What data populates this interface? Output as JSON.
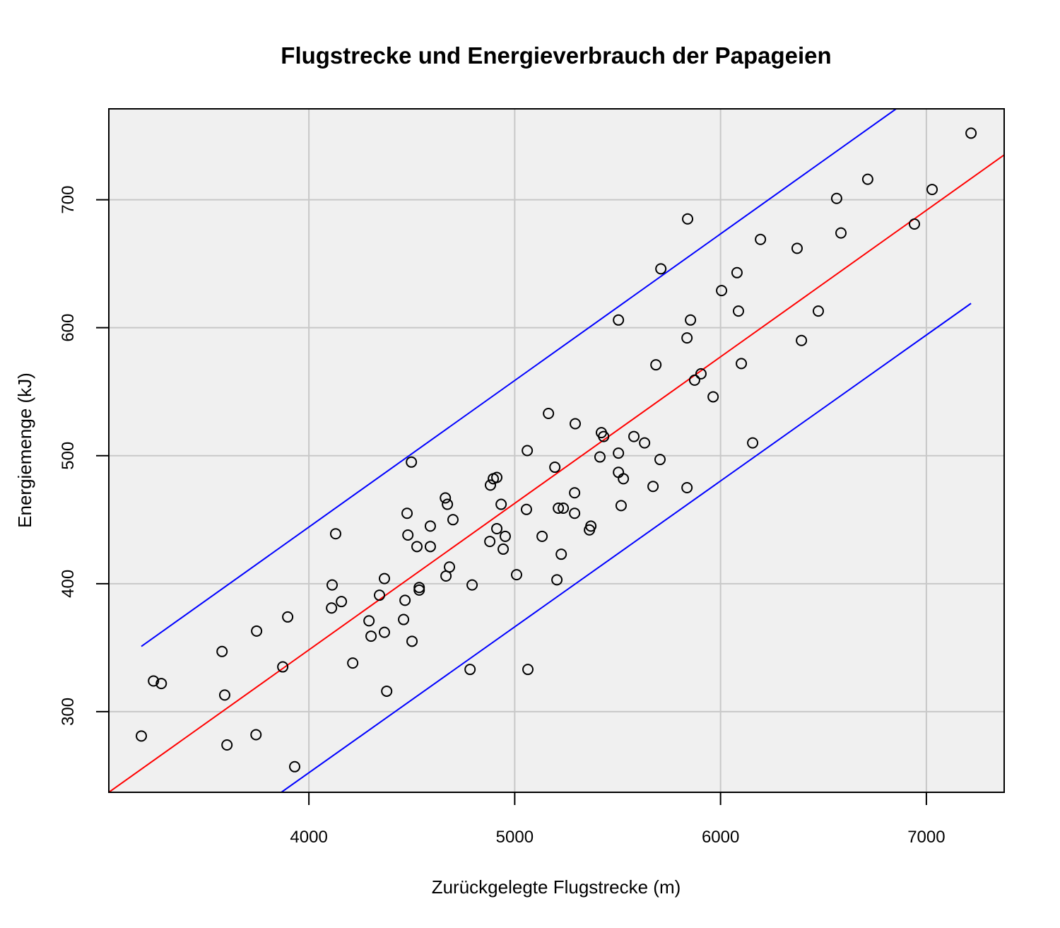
{
  "chart_data": {
    "type": "scatter",
    "title": "Flugstrecke und Energieverbrauch der Papageien",
    "xlabel": "Zurückgelegte Flugstrecke (m)",
    "ylabel": "Energiemenge (kJ)",
    "xlim": [
      3028,
      7378
    ],
    "ylim": [
      237,
      771
    ],
    "x_ticks": [
      4000,
      5000,
      6000,
      7000
    ],
    "y_ticks": [
      300,
      400,
      500,
      600,
      700
    ],
    "grid": true,
    "background": "#f0f0f0",
    "point_style": "open-circle",
    "points": [
      [
        3186,
        281
      ],
      [
        3245,
        324
      ],
      [
        3283,
        322
      ],
      [
        3578,
        347
      ],
      [
        3591,
        313
      ],
      [
        3602,
        274
      ],
      [
        3746,
        363
      ],
      [
        3743,
        282
      ],
      [
        3873,
        335
      ],
      [
        3897,
        374
      ],
      [
        3931,
        257
      ],
      [
        4113,
        399
      ],
      [
        4110,
        381
      ],
      [
        4130,
        439
      ],
      [
        4158,
        386
      ],
      [
        4213,
        338
      ],
      [
        4292,
        371
      ],
      [
        4302,
        359
      ],
      [
        4343,
        391
      ],
      [
        4367,
        404
      ],
      [
        4367,
        362
      ],
      [
        4378,
        316
      ],
      [
        4460,
        372
      ],
      [
        4467,
        387
      ],
      [
        4477,
        455
      ],
      [
        4481,
        438
      ],
      [
        4498,
        495
      ],
      [
        4501,
        355
      ],
      [
        4525,
        429
      ],
      [
        4536,
        397
      ],
      [
        4536,
        395
      ],
      [
        4590,
        445
      ],
      [
        4590,
        429
      ],
      [
        4666,
        406
      ],
      [
        4683,
        413
      ],
      [
        4663,
        467
      ],
      [
        4673,
        462
      ],
      [
        4700,
        450
      ],
      [
        4783,
        333
      ],
      [
        4793,
        399
      ],
      [
        4879,
        433
      ],
      [
        4882,
        477
      ],
      [
        4896,
        482
      ],
      [
        4913,
        483
      ],
      [
        4913,
        443
      ],
      [
        4934,
        462
      ],
      [
        4944,
        427
      ],
      [
        4954,
        437
      ],
      [
        5009,
        407
      ],
      [
        5057,
        458
      ],
      [
        5061,
        504
      ],
      [
        5064,
        333
      ],
      [
        5133,
        437
      ],
      [
        5164,
        533
      ],
      [
        5195,
        491
      ],
      [
        5205,
        403
      ],
      [
        5212,
        459
      ],
      [
        5226,
        423
      ],
      [
        5236,
        459
      ],
      [
        5291,
        471
      ],
      [
        5291,
        455
      ],
      [
        5294,
        525
      ],
      [
        5363,
        442
      ],
      [
        5370,
        445
      ],
      [
        5414,
        499
      ],
      [
        5421,
        518
      ],
      [
        5432,
        515
      ],
      [
        5504,
        606
      ],
      [
        5504,
        502
      ],
      [
        5504,
        487
      ],
      [
        5517,
        461
      ],
      [
        5528,
        482
      ],
      [
        5579,
        515
      ],
      [
        5631,
        510
      ],
      [
        5672,
        476
      ],
      [
        5686,
        571
      ],
      [
        5706,
        497
      ],
      [
        5710,
        646
      ],
      [
        5837,
        592
      ],
      [
        5837,
        475
      ],
      [
        5840,
        685
      ],
      [
        5854,
        606
      ],
      [
        5874,
        559
      ],
      [
        5905,
        564
      ],
      [
        5964,
        546
      ],
      [
        6005,
        629
      ],
      [
        6080,
        643
      ],
      [
        6087,
        613
      ],
      [
        6101,
        572
      ],
      [
        6156,
        510
      ],
      [
        6194,
        669
      ],
      [
        6372,
        662
      ],
      [
        6393,
        590
      ],
      [
        6475,
        613
      ],
      [
        6564,
        701
      ],
      [
        6585,
        674
      ],
      [
        6715,
        716
      ],
      [
        6942,
        681
      ],
      [
        7028,
        708
      ],
      [
        7217,
        752
      ]
    ],
    "lines": [
      {
        "name": "regression",
        "color": "#ff0000",
        "x": [
          3028,
          7378
        ],
        "y": [
          237,
          735
        ]
      },
      {
        "name": "upper-prediction-bound",
        "color": "#0000ff",
        "x": [
          3186,
          6853
        ],
        "y": [
          351,
          771
        ]
      },
      {
        "name": "lower-prediction-bound",
        "color": "#0000ff",
        "x": [
          3866,
          7217
        ],
        "y": [
          237,
          619
        ]
      }
    ]
  },
  "colors": {
    "plot_background": "#f0f0f0",
    "grid": "#c8c8c8",
    "regression": "#ff0000",
    "bounds": "#0000ff",
    "points": "#000000"
  }
}
